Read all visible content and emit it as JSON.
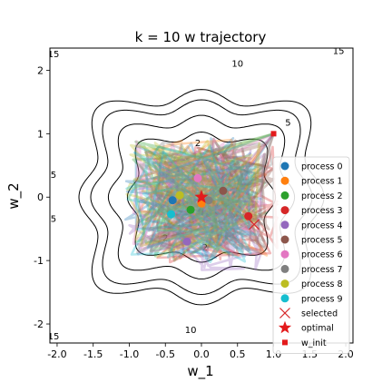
{
  "chart_data": {
    "type": "scatter",
    "title": "k = 10 w trajectory",
    "xlabel": "w_1",
    "ylabel": "w_2",
    "xlim": [
      -2.1,
      2.1
    ],
    "ylim": [
      -2.3,
      2.35
    ],
    "xticks": [
      "-2.0",
      "-1.5",
      "-1.0",
      "-0.5",
      "0.0",
      "0.5",
      "1.0",
      "1.5",
      "2.0"
    ],
    "yticks": [
      "-2",
      "-1",
      "0",
      "1",
      "2"
    ],
    "grid": false,
    "legend_position": "right",
    "contours": [
      {
        "level": "2",
        "label_points": [
          [
            -0.05,
            0.85
          ],
          [
            0.05,
            -0.8
          ],
          [
            -0.5,
            -0.65
          ]
        ]
      },
      {
        "level": "5",
        "label_points": [
          [
            1.2,
            1.17
          ],
          [
            -2.05,
            0.35
          ],
          [
            -2.05,
            -0.35
          ]
        ]
      },
      {
        "level": "10",
        "label_points": [
          [
            0.5,
            2.1
          ],
          [
            -0.15,
            -2.1
          ]
        ]
      },
      {
        "level": "15",
        "label_points": [
          [
            -2.05,
            2.25
          ],
          [
            1.9,
            2.3
          ],
          [
            -2.05,
            -2.2
          ]
        ]
      }
    ],
    "series": [
      {
        "name": "process 0",
        "color": "#1f77b4",
        "final_point": [
          -0.4,
          -0.05
        ]
      },
      {
        "name": "process 1",
        "color": "#ff7f0e",
        "final_point": [
          0.0,
          -0.1
        ]
      },
      {
        "name": "process 2",
        "color": "#2ca02c",
        "final_point": [
          -0.15,
          -0.2
        ]
      },
      {
        "name": "process 3",
        "color": "#d62728",
        "final_point": [
          0.65,
          -0.3
        ]
      },
      {
        "name": "process 4",
        "color": "#9467bd",
        "final_point": [
          -0.2,
          -0.7
        ]
      },
      {
        "name": "process 5",
        "color": "#8c564b",
        "final_point": [
          0.3,
          0.1
        ]
      },
      {
        "name": "process 6",
        "color": "#e377c2",
        "final_point": [
          -0.05,
          0.3
        ]
      },
      {
        "name": "process 7",
        "color": "#7f7f7f",
        "final_point": [
          0.1,
          -0.05
        ]
      },
      {
        "name": "process 8",
        "color": "#bcbd22",
        "final_point": [
          -0.3,
          0.03
        ]
      },
      {
        "name": "process 9",
        "color": "#17becf",
        "final_point": [
          -0.42,
          -0.27
        ]
      }
    ],
    "selected": {
      "name": "selected",
      "point": [
        0.73,
        -0.43
      ],
      "color": "#d62728"
    },
    "optimal": {
      "name": "optimal",
      "point": [
        0.0,
        0.0
      ],
      "color": "#e31a1c"
    },
    "w_init": {
      "name": "w_init",
      "point": [
        1.0,
        1.0
      ],
      "color": "#e31a1c"
    }
  }
}
